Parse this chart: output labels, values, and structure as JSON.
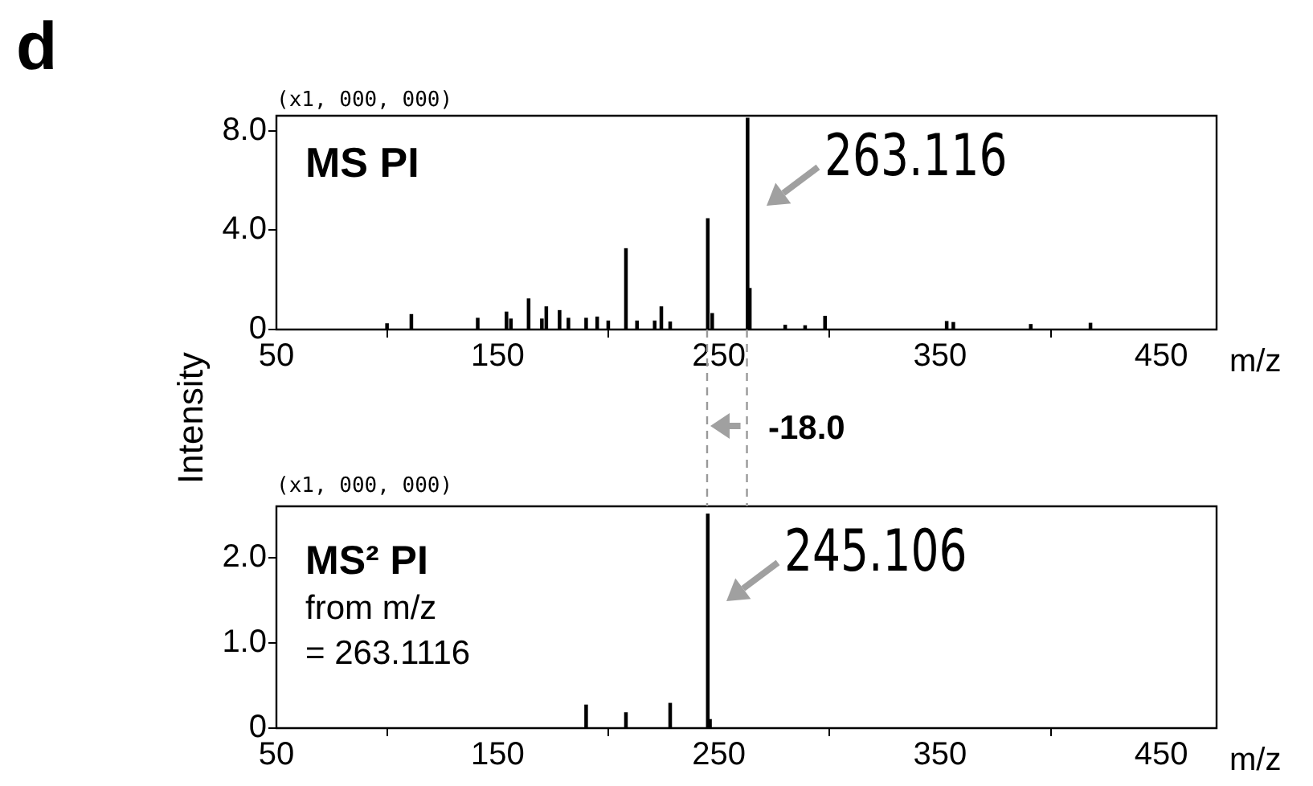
{
  "chart_data": [
    {
      "type": "bar",
      "xlabel": "m/z",
      "ylabel": "Intensity",
      "color": "#000000",
      "x": [
        100,
        111,
        141,
        154,
        156,
        164,
        170,
        172,
        178,
        182,
        190,
        195,
        200,
        208,
        213,
        221,
        224,
        228,
        245,
        247,
        263,
        264,
        280,
        289,
        298,
        353,
        356,
        391,
        418
      ],
      "values": [
        0.23,
        0.6,
        0.45,
        0.7,
        0.42,
        1.23,
        0.42,
        0.91,
        0.76,
        0.45,
        0.45,
        0.5,
        0.34,
        3.25,
        0.34,
        0.34,
        0.91,
        0.3,
        4.46,
        0.64,
        8.5,
        1.65,
        0.17,
        0.15,
        0.53,
        0.32,
        0.28,
        0.2,
        0.25
      ],
      "xlim": [
        50,
        475
      ],
      "xticks": [
        50,
        150,
        250,
        350,
        450
      ],
      "ylim": [
        0,
        8.6
      ],
      "yticks": [
        0,
        {
          "value": 4,
          "label": "4.0"
        },
        {
          "value": 8,
          "label": "8.0"
        }
      ],
      "grid": false,
      "legend": false,
      "annotations": [
        {
          "text": "263.116",
          "x": 263,
          "y": 8.5
        },
        "d",
        "(x1, 000, 000)",
        "MS PI",
        "-18.0"
      ]
    },
    {
      "type": "bar",
      "xlabel": "m/z",
      "color": "#000000",
      "x": [
        190,
        208,
        228,
        245,
        246
      ],
      "values": [
        0.27,
        0.18,
        0.29,
        2.51,
        0.1
      ],
      "xlim": [
        50,
        475
      ],
      "xticks": [
        50,
        150,
        250,
        350,
        450
      ],
      "ylim": [
        0,
        2.6
      ],
      "yticks": [
        0,
        {
          "value": 1,
          "label": "1.0"
        },
        {
          "value": 2,
          "label": "2.0"
        }
      ],
      "grid": false,
      "legend": false,
      "annotations": [
        {
          "text": "245.106",
          "x": 245,
          "y": 2.51
        },
        "(x1, 000, 000)",
        "MS² PI",
        "from m/z",
        "= 263.1116"
      ]
    }
  ]
}
